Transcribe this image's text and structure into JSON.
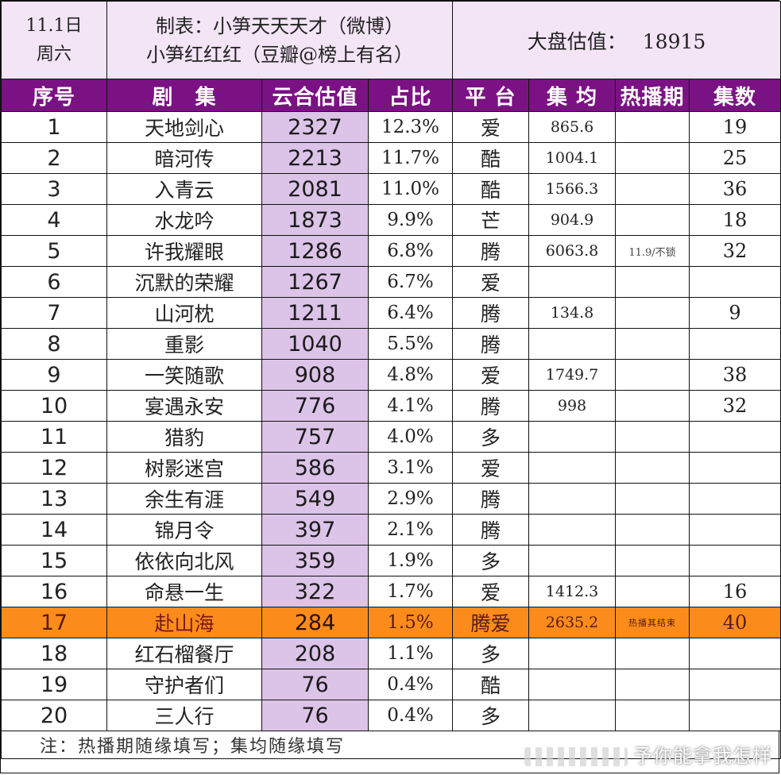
{
  "header": {
    "date_line1": "11.1日",
    "date_line2": "周六",
    "maker_line1": "制表：小笋天天天才（微博）",
    "maker_line2": "小笋红红红（豆瓣@榜上有名）",
    "total_label": "大盘估值：",
    "total_value": "18915"
  },
  "columns": [
    "序号",
    "剧　集",
    "云合估值",
    "占比",
    "平 台",
    "集 均",
    "热播期",
    "集数"
  ],
  "rows": [
    {
      "rank": "1",
      "name": "天地剑心",
      "value": "2327",
      "pct": "12.3%",
      "platform": "爱",
      "avg": "865.6",
      "hot": "",
      "episodes": "19"
    },
    {
      "rank": "2",
      "name": "暗河传",
      "value": "2213",
      "pct": "11.7%",
      "platform": "酷",
      "avg": "1004.1",
      "hot": "",
      "episodes": "25"
    },
    {
      "rank": "3",
      "name": "入青云",
      "value": "2081",
      "pct": "11.0%",
      "platform": "酷",
      "avg": "1566.3",
      "hot": "",
      "episodes": "36"
    },
    {
      "rank": "4",
      "name": "水龙吟",
      "value": "1873",
      "pct": "9.9%",
      "platform": "芒",
      "avg": "904.9",
      "hot": "",
      "episodes": "18"
    },
    {
      "rank": "5",
      "name": "许我耀眼",
      "value": "1286",
      "pct": "6.8%",
      "platform": "腾",
      "avg": "6063.8",
      "hot": "11.9/不锁",
      "episodes": "32"
    },
    {
      "rank": "6",
      "name": "沉默的荣耀",
      "value": "1267",
      "pct": "6.7%",
      "platform": "爱",
      "avg": "",
      "hot": "",
      "episodes": ""
    },
    {
      "rank": "7",
      "name": "山河枕",
      "value": "1211",
      "pct": "6.4%",
      "platform": "腾",
      "avg": "134.8",
      "hot": "",
      "episodes": "9"
    },
    {
      "rank": "8",
      "name": "重影",
      "value": "1040",
      "pct": "5.5%",
      "platform": "腾",
      "avg": "",
      "hot": "",
      "episodes": ""
    },
    {
      "rank": "9",
      "name": "一笑随歌",
      "value": "908",
      "pct": "4.8%",
      "platform": "爱",
      "avg": "1749.7",
      "hot": "",
      "episodes": "38"
    },
    {
      "rank": "10",
      "name": "宴遇永安",
      "value": "776",
      "pct": "4.1%",
      "platform": "腾",
      "avg": "998",
      "hot": "",
      "episodes": "32"
    },
    {
      "rank": "11",
      "name": "猎豹",
      "value": "757",
      "pct": "4.0%",
      "platform": "多",
      "avg": "",
      "hot": "",
      "episodes": ""
    },
    {
      "rank": "12",
      "name": "树影迷宫",
      "value": "586",
      "pct": "3.1%",
      "platform": "爱",
      "avg": "",
      "hot": "",
      "episodes": ""
    },
    {
      "rank": "13",
      "name": "余生有涯",
      "value": "549",
      "pct": "2.9%",
      "platform": "腾",
      "avg": "",
      "hot": "",
      "episodes": ""
    },
    {
      "rank": "14",
      "name": "锦月令",
      "value": "397",
      "pct": "2.1%",
      "platform": "腾",
      "avg": "",
      "hot": "",
      "episodes": ""
    },
    {
      "rank": "15",
      "name": "依依向北风",
      "value": "359",
      "pct": "1.9%",
      "platform": "多",
      "avg": "",
      "hot": "",
      "episodes": ""
    },
    {
      "rank": "16",
      "name": "命悬一生",
      "value": "322",
      "pct": "1.7%",
      "platform": "爱",
      "avg": "1412.3",
      "hot": "",
      "episodes": "16"
    },
    {
      "rank": "17",
      "name": "赴山海",
      "value": "284",
      "pct": "1.5%",
      "platform": "腾爱",
      "avg": "2635.2",
      "hot": "热播其结束",
      "episodes": "40"
    },
    {
      "rank": "18",
      "name": "红石榴餐厅",
      "value": "208",
      "pct": "1.1%",
      "platform": "多",
      "avg": "",
      "hot": "",
      "episodes": ""
    },
    {
      "rank": "19",
      "name": "守护者们",
      "value": "76",
      "pct": "0.4%",
      "platform": "酷",
      "avg": "",
      "hot": "",
      "episodes": ""
    },
    {
      "rank": "20",
      "name": "三人行",
      "value": "76",
      "pct": "0.4%",
      "platform": "多",
      "avg": "",
      "hot": "",
      "episodes": ""
    }
  ],
  "highlight_row": "17",
  "footer": {
    "note": "注：热播期随缘填写；集均随缘填写"
  },
  "watermark": "予你能拿我怎样",
  "colors": {
    "header_bg": "#7b1283",
    "top_bg": "#f3e4f6",
    "value_col_bg": "#dcc3e8",
    "highlight_bg": "#fb8c1c"
  }
}
